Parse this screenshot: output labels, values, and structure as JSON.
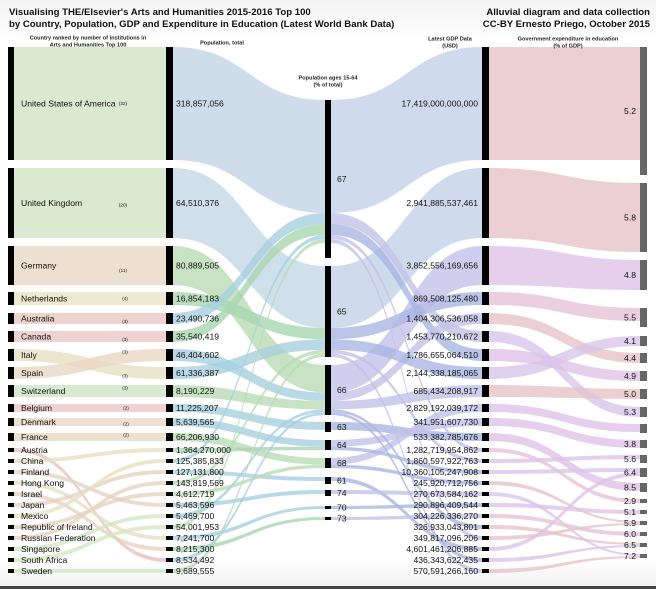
{
  "title": {
    "line1": "Visualising THE/Elsevier's Arts and Humanities 2015-2016 Top 100",
    "line2": "by Country, Population, GDP and Expenditure in Education (Latest World Bank Data)",
    "credit1": "Alluvial diagram and data collection",
    "credit2": "CC-BY Ernesto Priego, October 2015"
  },
  "chart_data": {
    "type": "alluvial",
    "headers": {
      "country": [
        "Country ranked by number of institutions in",
        "Arts and Humanities Top 100"
      ],
      "population": [
        "Population, total"
      ],
      "ages": [
        "Population ages 15-64",
        "(% of total)"
      ],
      "gdp": [
        "Latest GDP Data",
        "(USD)"
      ],
      "education": [
        "Government expenditure in education",
        "(% of GDP)"
      ]
    },
    "countries": [
      {
        "name": "United States of America",
        "count": "(32)"
      },
      {
        "name": "United Kingdom",
        "count": "(20)"
      },
      {
        "name": "Germany",
        "count": "(11)"
      },
      {
        "name": "Netherlands",
        "count": "(4)"
      },
      {
        "name": "Australia",
        "count": "(3)"
      },
      {
        "name": "Canada",
        "count": "(3)"
      },
      {
        "name": "Italy",
        "count": "(3)"
      },
      {
        "name": "Spain",
        "count": "(3)"
      },
      {
        "name": "Switzerland",
        "count": "(3)"
      },
      {
        "name": "Belgium",
        "count": "(2)"
      },
      {
        "name": "Denmark",
        "count": "(2)"
      },
      {
        "name": "France",
        "count": "(2)"
      },
      {
        "name": "Austria",
        "count": ""
      },
      {
        "name": "China",
        "count": ""
      },
      {
        "name": "Finland",
        "count": ""
      },
      {
        "name": "Hong Kong",
        "count": ""
      },
      {
        "name": "Israel",
        "count": ""
      },
      {
        "name": "Japan",
        "count": ""
      },
      {
        "name": "Mexico",
        "count": ""
      },
      {
        "name": "Republic of Ireland",
        "count": ""
      },
      {
        "name": "Russian Federation",
        "count": ""
      },
      {
        "name": "Singapore",
        "count": ""
      },
      {
        "name": "South Africa",
        "count": ""
      },
      {
        "name": "Sweden",
        "count": ""
      }
    ],
    "population": [
      "318,857,056",
      "64,510,376",
      "80,889,505",
      "16,854,183",
      "23,490,736",
      "35,540,419",
      "46,404,602",
      "61,336,387",
      "8,190,229",
      "11,225,207",
      "5,639,565",
      "66,206,930",
      "1,364,270,000",
      "125,385,833",
      "127,131,800",
      "143,819,569",
      "4,612,719",
      "5,463,596",
      "5,469,700",
      "54,001,953",
      "7,241,700",
      "8,215,300",
      "8,534,492",
      "9,689,555"
    ],
    "ages": [
      "67",
      "65",
      "66",
      "63",
      "64",
      "68",
      "61",
      "74",
      "70",
      "73"
    ],
    "gdp": [
      "17,419,000,000,000",
      "2,941,885,537,461",
      "3,852,556,169,656",
      "869,508,125,480",
      "1,404,306,536,058",
      "1,453,770,210,672",
      "1,786,655,064,510",
      "2,144,338,185,065",
      "685,434,208,917",
      "2,829,192,039,172",
      "341,951,607,730",
      "533,382,785,676",
      "1,282,719,954,862",
      "1,860,597,922,763",
      "10,360,105,247,908",
      "245,920,712,756",
      "270,673,584,162",
      "290,896,409,544",
      "304,226,336,270",
      "326,933,043,801",
      "349,817,096,206",
      "4,601,461,206,885",
      "436,343,622,435",
      "570,591,266,160"
    ],
    "education": [
      "5.2",
      "5.8",
      "4.8",
      "5.5",
      "4.1",
      "4.4",
      "4.9",
      "5.0",
      "5.3",
      "",
      "3.8",
      "5.6",
      "6.4",
      "8.5",
      "2.9",
      "5.1",
      "5.9",
      "6.0",
      "6.5",
      "7.2"
    ],
    "flows": {
      "country_to_population": [
        0,
        1,
        2,
        3,
        4,
        5,
        7,
        6,
        8,
        9,
        10,
        11,
        22,
        12,
        17,
        20,
        21,
        14,
        13,
        16,
        15,
        18,
        19,
        23
      ],
      "population_to_ages": [
        0,
        1,
        2,
        1,
        0,
        0,
        2,
        1,
        2,
        3,
        4,
        5,
        4,
        0,
        6,
        1,
        5,
        7,
        2,
        0,
        8,
        9,
        2,
        1
      ],
      "ages_to_gdp": [
        0,
        1,
        2,
        3,
        5,
        6,
        4,
        7,
        8,
        11,
        10,
        9,
        14,
        12,
        21,
        13,
        15,
        16,
        19,
        20,
        17,
        18,
        22,
        23
      ],
      "gdp_to_education": [
        0,
        1,
        2,
        3,
        5,
        8,
        6,
        4,
        7,
        9,
        10,
        13,
        14,
        11,
        12,
        16,
        19,
        15,
        17,
        18,
        16,
        12,
        18,
        19
      ]
    },
    "colors": {
      "node": "#000000",
      "edu_node": "#666666",
      "country_bands": [
        "#cfe5c4",
        "#cfe5c4",
        "#e8d8c4",
        "#e7e5c4",
        "#ebc8c8",
        "#ebc8c8",
        "#e7e0c2",
        "#e8d8c4",
        "#cfe5c4",
        "#ebc8c8",
        "#e8d8c4",
        "#e8d8c4",
        "#e6c0c0",
        "#e7e0c2",
        "#e6d3c0",
        "#e7e0c2",
        "#e6d3c0",
        "#e6d3c0",
        "#e7e0c2",
        "#e6d3c0",
        "#e6d3c0",
        "#d5e6c2",
        "#d5e6c2",
        "#cfe5c4"
      ],
      "population_bands": [
        "#c3d5e6",
        "#c3d8e6",
        "#b9dcb4",
        "#a9d6b0",
        "#a7cfe0",
        "#a9d6b0",
        "#a7cfe0",
        "#a7cfe0",
        "#b9dcb4",
        "#a7cfe0",
        "#a7cfe0",
        "#b9dcb4",
        "#a9d6b0",
        "#a7cfe0",
        "#a7cfe0",
        "#b9dcb4",
        "#b9dcb4",
        "#a7cfe0",
        "#a7cfe0",
        "#b9dcb4",
        "#a7cfe0",
        "#a9d6b0",
        "#a7cfe0",
        "#b9dcb4"
      ],
      "gdp_bands": [
        "#c3d2e7",
        "#c3d2e7",
        "#c4c2e8",
        "#a9b6e2",
        "#c4c2e8",
        "#a9b6e2",
        "#c4c2e8",
        "#a9b6e2",
        "#c4c2e8",
        "#a9b6e2",
        "#c4c2e8",
        "#c4c2e8",
        "#a9b6e2",
        "#c4c2e8",
        "#a9b6e2",
        "#c4c2e8",
        "#a9b6e2",
        "#c4c2e8",
        "#a9b6e2",
        "#c4c2e8",
        "#a9b6e2",
        "#c4c2e8",
        "#a9b6e2",
        "#c4c2e8"
      ],
      "education_bands": [
        "#e6c3c7",
        "#e6c3c7",
        "#e0c2e8",
        "#e6c3d6",
        "#e6c3c7",
        "#d8c6ea",
        "#e0c2e8",
        "#d8c6ea",
        "#e6c3c7",
        "#e0c2e8",
        "#e0c2e8",
        "#e0c2e8",
        "#e6c3d6",
        "#e0c2e8",
        "#d8c6ea",
        "#e6c3c7",
        "#d8c6ea",
        "#e0c2e8",
        "#e6c3d6",
        "#e6c3c7",
        "#e6c3c7",
        "#e0c2e8",
        "#d8c6ea",
        "#e6c3c7"
      ]
    }
  }
}
